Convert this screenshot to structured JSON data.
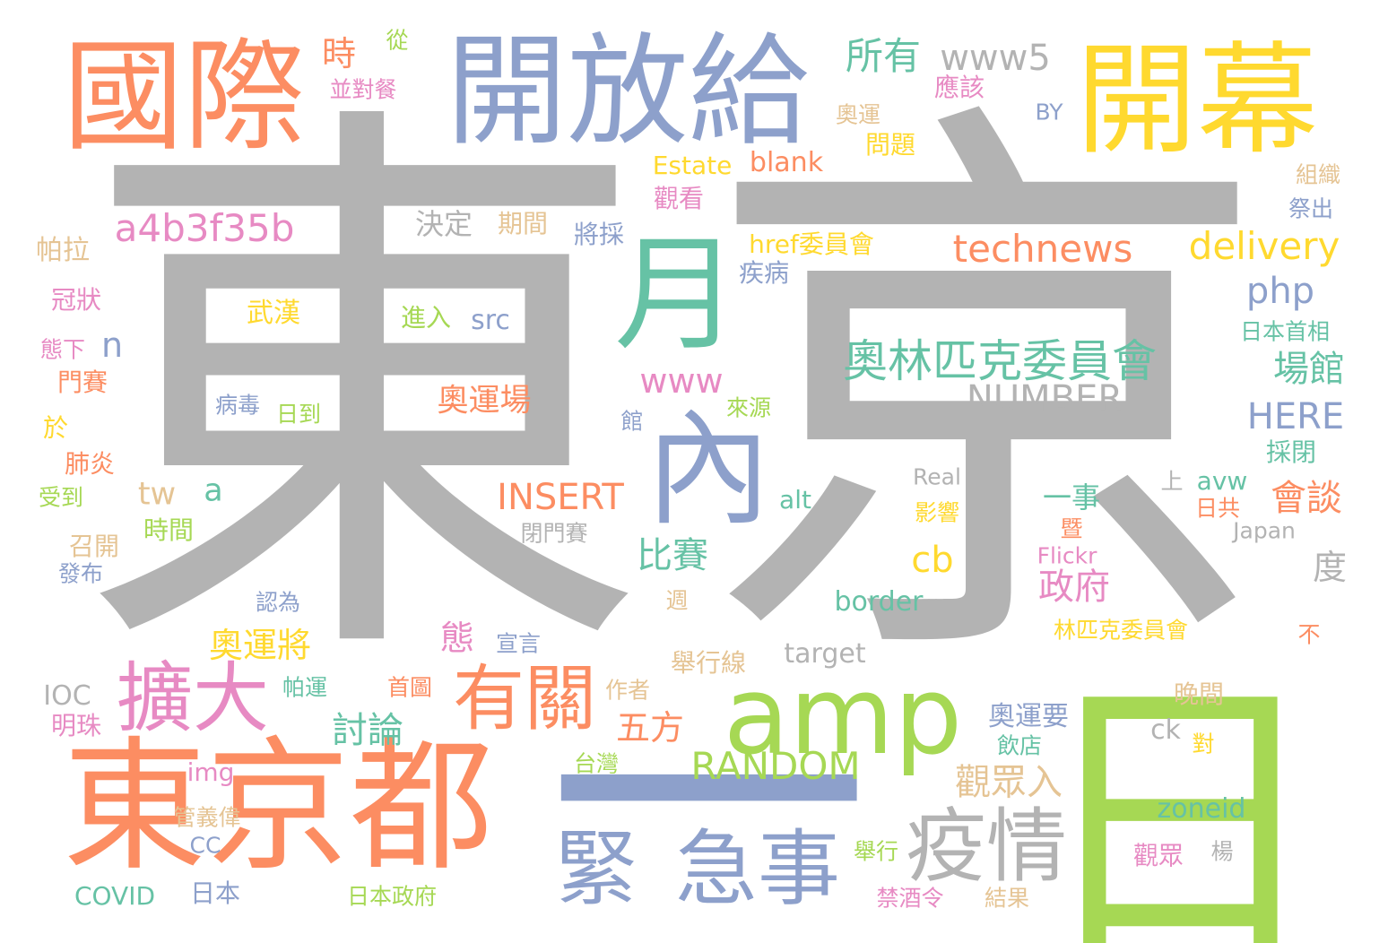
{
  "colors": {
    "gray": "#b3b3b3",
    "orange": "#fc8d62",
    "blue": "#8da0cb",
    "green": "#66c2a5",
    "pink": "#e78ac3",
    "lime": "#a6d854",
    "yellow": "#ffd92f",
    "tan": "#e5c494"
  },
  "words": [
    {
      "text": "東",
      "color": "gray",
      "size": 640
    },
    {
      "text": "京",
      "color": "gray",
      "size": 640
    },
    {
      "text": "國際",
      "color": "orange",
      "size": 135
    },
    {
      "text": "開放給",
      "color": "blue",
      "size": 135
    },
    {
      "text": "開幕",
      "color": "yellow",
      "size": 135
    },
    {
      "text": "日",
      "color": "lime",
      "size": 330
    },
    {
      "text": "東京都",
      "color": "orange",
      "size": 160
    },
    {
      "text": "一",
      "color": "blue",
      "size": 360
    },
    {
      "text": "緊",
      "color": "blue",
      "size": 92
    },
    {
      "text": "急事",
      "color": "blue",
      "size": 92
    },
    {
      "text": "月",
      "color": "green",
      "size": 140
    },
    {
      "text": "內",
      "color": "blue",
      "size": 140
    },
    {
      "text": "amp",
      "color": "lime",
      "size": 120
    },
    {
      "text": "疫情",
      "color": "gray",
      "size": 90
    },
    {
      "text": "擴大",
      "color": "pink",
      "size": 85
    },
    {
      "text": "有關",
      "color": "orange",
      "size": 80
    },
    {
      "text": "奧林匹克委員會",
      "color": "green",
      "size": 50
    },
    {
      "text": "NUMBER",
      "color": "gray",
      "size": 40
    },
    {
      "text": "technews",
      "color": "orange",
      "size": 42
    },
    {
      "text": "delivery",
      "color": "yellow",
      "size": 42
    },
    {
      "text": "a4b3f35b",
      "color": "pink",
      "size": 42
    },
    {
      "text": "INSERT",
      "color": "orange",
      "size": 40
    },
    {
      "text": "RANDOM",
      "color": "lime",
      "size": 42
    },
    {
      "text": "www5",
      "color": "gray",
      "size": 40
    },
    {
      "text": "所有",
      "color": "green",
      "size": 42
    },
    {
      "text": "時",
      "color": "orange",
      "size": 38
    },
    {
      "text": "並對餐",
      "color": "pink",
      "size": 25
    },
    {
      "text": "從",
      "color": "lime",
      "size": 25
    },
    {
      "text": "應該",
      "color": "pink",
      "size": 28
    },
    {
      "text": "BY",
      "color": "blue",
      "size": 25
    },
    {
      "text": "奧運",
      "color": "tan",
      "size": 25
    },
    {
      "text": "問題",
      "color": "yellow",
      "size": 28
    },
    {
      "text": "Estate",
      "color": "yellow",
      "size": 28
    },
    {
      "text": "blank",
      "color": "orange",
      "size": 30
    },
    {
      "text": "觀看",
      "color": "pink",
      "size": 28
    },
    {
      "text": "組織",
      "color": "tan",
      "size": 25
    },
    {
      "text": "祭出",
      "color": "blue",
      "size": 25
    },
    {
      "text": "決定",
      "color": "gray",
      "size": 32
    },
    {
      "text": "期間",
      "color": "tan",
      "size": 28
    },
    {
      "text": "將採",
      "color": "blue",
      "size": 28
    },
    {
      "text": "帕拉",
      "color": "tan",
      "size": 30
    },
    {
      "text": "href委員會",
      "color": "yellow",
      "size": 28
    },
    {
      "text": "疾病",
      "color": "blue",
      "size": 28
    },
    {
      "text": "php",
      "color": "blue",
      "size": 40
    },
    {
      "text": "冠狀",
      "color": "pink",
      "size": 28
    },
    {
      "text": "武漢",
      "color": "yellow",
      "size": 30
    },
    {
      "text": "進入",
      "color": "lime",
      "size": 28
    },
    {
      "text": "src",
      "color": "blue",
      "size": 30
    },
    {
      "text": "態下",
      "color": "pink",
      "size": 25
    },
    {
      "text": "n",
      "color": "blue",
      "size": 38
    },
    {
      "text": "日本首相",
      "color": "green",
      "size": 25
    },
    {
      "text": "場館",
      "color": "green",
      "size": 40
    },
    {
      "text": "www",
      "color": "pink",
      "size": 38
    },
    {
      "text": "門賽",
      "color": "orange",
      "size": 28
    },
    {
      "text": "病毒",
      "color": "blue",
      "size": 25
    },
    {
      "text": "日到",
      "color": "lime",
      "size": 25
    },
    {
      "text": "奧運場",
      "color": "orange",
      "size": 35
    },
    {
      "text": "館",
      "color": "blue",
      "size": 25
    },
    {
      "text": "來源",
      "color": "lime",
      "size": 25
    },
    {
      "text": "HERE",
      "color": "blue",
      "size": 40
    },
    {
      "text": "於",
      "color": "yellow",
      "size": 28
    },
    {
      "text": "肺炎",
      "color": "orange",
      "size": 28
    },
    {
      "text": "Real",
      "color": "gray",
      "size": 25
    },
    {
      "text": "採閉",
      "color": "green",
      "size": 28
    },
    {
      "text": "受到",
      "color": "lime",
      "size": 25
    },
    {
      "text": "tw",
      "color": "tan",
      "size": 35
    },
    {
      "text": "a",
      "color": "green",
      "size": 35
    },
    {
      "text": "alt",
      "color": "green",
      "size": 28
    },
    {
      "text": "一事",
      "color": "green",
      "size": 32
    },
    {
      "text": "影響",
      "color": "yellow",
      "size": 25
    },
    {
      "text": "上",
      "color": "gray",
      "size": 25
    },
    {
      "text": "avw",
      "color": "green",
      "size": 28
    },
    {
      "text": "會談",
      "color": "orange",
      "size": 40
    },
    {
      "text": "日共",
      "color": "orange",
      "size": 25
    },
    {
      "text": "時間",
      "color": "lime",
      "size": 28
    },
    {
      "text": "召開",
      "color": "tan",
      "size": 28
    },
    {
      "text": "閉門賽",
      "color": "gray",
      "size": 25
    },
    {
      "text": "暨",
      "color": "orange",
      "size": 25
    },
    {
      "text": "Japan",
      "color": "gray",
      "size": 25
    },
    {
      "text": "比賽",
      "color": "green",
      "size": 40
    },
    {
      "text": "cb",
      "color": "yellow",
      "size": 40
    },
    {
      "text": "政府",
      "color": "pink",
      "size": 40
    },
    {
      "text": "Flickr",
      "color": "pink",
      "size": 25
    },
    {
      "text": "發布",
      "color": "blue",
      "size": 25
    },
    {
      "text": "度",
      "color": "gray",
      "size": 38
    },
    {
      "text": "認為",
      "color": "blue",
      "size": 25
    },
    {
      "text": "週",
      "color": "tan",
      "size": 25
    },
    {
      "text": "border",
      "color": "green",
      "size": 30
    },
    {
      "text": "奧運將",
      "color": "yellow",
      "size": 38
    },
    {
      "text": "態",
      "color": "pink",
      "size": 38
    },
    {
      "text": "宣言",
      "color": "blue",
      "size": 25
    },
    {
      "text": "林匹克委員會",
      "color": "yellow",
      "size": 25
    },
    {
      "text": "不",
      "color": "orange",
      "size": 25
    },
    {
      "text": "target",
      "color": "gray",
      "size": 30
    },
    {
      "text": "舉行線",
      "color": "tan",
      "size": 28
    },
    {
      "text": "IOC",
      "color": "gray",
      "size": 30
    },
    {
      "text": "帕運",
      "color": "green",
      "size": 25
    },
    {
      "text": "首圖",
      "color": "orange",
      "size": 25
    },
    {
      "text": "作者",
      "color": "tan",
      "size": 25
    },
    {
      "text": "晚間",
      "color": "tan",
      "size": 28
    },
    {
      "text": "明珠",
      "color": "pink",
      "size": 28
    },
    {
      "text": "討論",
      "color": "green",
      "size": 40
    },
    {
      "text": "五方",
      "color": "orange",
      "size": 38
    },
    {
      "text": "奧運要",
      "color": "blue",
      "size": 30
    },
    {
      "text": "ck",
      "color": "gray",
      "size": 30
    },
    {
      "text": "對",
      "color": "yellow",
      "size": 25
    },
    {
      "text": "飲店",
      "color": "green",
      "size": 25
    },
    {
      "text": "台灣",
      "color": "lime",
      "size": 25
    },
    {
      "text": "觀眾入",
      "color": "tan",
      "size": 40
    },
    {
      "text": "img",
      "color": "pink",
      "size": 28
    },
    {
      "text": "管義偉",
      "color": "tan",
      "size": 25
    },
    {
      "text": "zoneid",
      "color": "green",
      "size": 30
    },
    {
      "text": "CC",
      "color": "blue",
      "size": 25
    },
    {
      "text": "觀眾",
      "color": "pink",
      "size": 28
    },
    {
      "text": "楊",
      "color": "gray",
      "size": 25
    },
    {
      "text": "舉行",
      "color": "lime",
      "size": 25
    },
    {
      "text": "COVID",
      "color": "green",
      "size": 28
    },
    {
      "text": "日本",
      "color": "blue",
      "size": 28
    },
    {
      "text": "日本政府",
      "color": "lime",
      "size": 25
    },
    {
      "text": "禁酒令",
      "color": "pink",
      "size": 25
    },
    {
      "text": "結果",
      "color": "tan",
      "size": 25
    }
  ]
}
